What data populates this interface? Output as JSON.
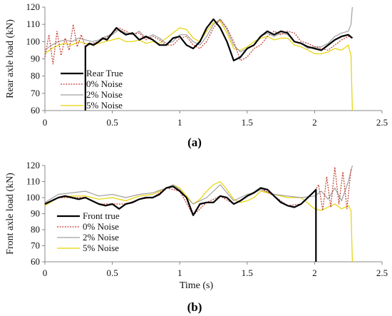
{
  "chart_data": [
    {
      "type": "line",
      "caption": "(a)",
      "xlabel": "",
      "ylabel": "Rear axle load (kN)",
      "xlim": [
        0,
        2.5
      ],
      "ylim": [
        60,
        120
      ],
      "xticks": [
        "0",
        "0.5",
        "1",
        "1.5",
        "2",
        "2.5"
      ],
      "yticks": [
        "60",
        "70",
        "80",
        "90",
        "100",
        "110",
        "120"
      ],
      "grid": false,
      "legend_position": "lower-left",
      "series": [
        {
          "name": "Rear True",
          "color": "#000000",
          "style": "solid",
          "x": [
            0.3,
            0.3,
            0.33,
            0.36,
            0.4,
            0.43,
            0.46,
            0.5,
            0.53,
            0.56,
            0.6,
            0.65,
            0.7,
            0.75,
            0.8,
            0.85,
            0.9,
            0.95,
            1.0,
            1.05,
            1.1,
            1.15,
            1.2,
            1.25,
            1.3,
            1.35,
            1.4,
            1.45,
            1.5,
            1.55,
            1.6,
            1.65,
            1.7,
            1.75,
            1.8,
            1.85,
            1.9,
            1.95,
            2.0,
            2.05,
            2.1,
            2.15,
            2.2,
            2.25,
            2.28
          ],
          "y": [
            60,
            97,
            99,
            98,
            100,
            102,
            101,
            105,
            108,
            106,
            104,
            105,
            101,
            103,
            101,
            98,
            98,
            102,
            103,
            98,
            96,
            100,
            108,
            113,
            108,
            100,
            89,
            91,
            96,
            98,
            103,
            106,
            104,
            106,
            105,
            100,
            99,
            97,
            96,
            95,
            98,
            101,
            103,
            104,
            102
          ]
        },
        {
          "name": "0% Noise",
          "color": "#c0392b",
          "style": "dotted",
          "x": [
            0,
            0.03,
            0.06,
            0.09,
            0.12,
            0.15,
            0.18,
            0.21,
            0.24,
            0.27,
            0.3,
            0.35,
            0.4,
            0.45,
            0.5,
            0.55,
            0.6,
            0.65,
            0.7,
            0.75,
            0.8,
            0.85,
            0.9,
            0.95,
            1.0,
            1.05,
            1.1,
            1.15,
            1.2,
            1.25,
            1.3,
            1.35,
            1.4,
            1.45,
            1.5,
            1.55,
            1.6,
            1.65,
            1.7,
            1.75,
            1.8,
            1.85,
            1.9,
            1.95,
            2.0,
            2.05,
            2.1,
            2.15,
            2.2,
            2.25,
            2.28
          ],
          "y": [
            91,
            104,
            87,
            106,
            92,
            102,
            95,
            110,
            97,
            104,
            97,
            99,
            100,
            102,
            105,
            108,
            106,
            104,
            105,
            101,
            103,
            101,
            98,
            98,
            102,
            103,
            98,
            96,
            100,
            108,
            113,
            108,
            100,
            89,
            91,
            96,
            98,
            103,
            106,
            104,
            106,
            105,
            100,
            99,
            97,
            96,
            95,
            98,
            101,
            103,
            102
          ]
        },
        {
          "name": "2% Noise",
          "color": "#a0a0a0",
          "style": "solid",
          "x": [
            0,
            0.05,
            0.1,
            0.15,
            0.2,
            0.25,
            0.3,
            0.35,
            0.4,
            0.45,
            0.5,
            0.55,
            0.6,
            0.65,
            0.7,
            0.75,
            0.8,
            0.85,
            0.9,
            0.95,
            1.0,
            1.05,
            1.1,
            1.15,
            1.2,
            1.25,
            1.3,
            1.35,
            1.4,
            1.45,
            1.5,
            1.55,
            1.6,
            1.65,
            1.7,
            1.75,
            1.8,
            1.85,
            1.9,
            1.95,
            2.0,
            2.05,
            2.1,
            2.15,
            2.2,
            2.25,
            2.27,
            2.28
          ],
          "y": [
            95,
            98,
            100,
            101,
            100,
            102,
            101,
            100,
            101,
            103,
            104,
            107,
            105,
            104,
            106,
            102,
            104,
            102,
            99,
            100,
            104,
            104,
            100,
            98,
            103,
            110,
            113,
            107,
            98,
            94,
            96,
            98,
            103,
            105,
            103,
            105,
            104,
            100,
            99,
            96,
            97,
            97,
            99,
            103,
            105,
            106,
            110,
            120
          ]
        },
        {
          "name": "5% Noise",
          "color": "#e6d200",
          "style": "solid",
          "x": [
            0,
            0.05,
            0.1,
            0.15,
            0.2,
            0.25,
            0.3,
            0.35,
            0.4,
            0.45,
            0.5,
            0.55,
            0.6,
            0.65,
            0.7,
            0.75,
            0.8,
            0.85,
            0.9,
            0.95,
            1.0,
            1.05,
            1.1,
            1.15,
            1.2,
            1.25,
            1.3,
            1.35,
            1.4,
            1.45,
            1.5,
            1.55,
            1.6,
            1.65,
            1.7,
            1.75,
            1.8,
            1.85,
            1.9,
            1.95,
            2.0,
            2.05,
            2.1,
            2.15,
            2.2,
            2.25,
            2.27,
            2.28
          ],
          "y": [
            93,
            96,
            98,
            99,
            98,
            100,
            99,
            98,
            99,
            100,
            101,
            102,
            100,
            100,
            101,
            99,
            100,
            99,
            102,
            105,
            108,
            107,
            102,
            100,
            106,
            111,
            112,
            105,
            96,
            95,
            97,
            100,
            102,
            103,
            101,
            102,
            102,
            98,
            97,
            95,
            93,
            93,
            94,
            96,
            95,
            98,
            92,
            60
          ]
        }
      ]
    },
    {
      "type": "line",
      "caption": "(b)",
      "xlabel": "Time (s)",
      "ylabel": "Front axle load (kN)",
      "xlim": [
        0,
        2.5
      ],
      "ylim": [
        60,
        120
      ],
      "xticks": [
        "0",
        "0.5",
        "1",
        "1.5",
        "2",
        "2.5"
      ],
      "yticks": [
        "60",
        "70",
        "80",
        "90",
        "100",
        "110",
        "120"
      ],
      "grid": false,
      "legend_position": "lower-left",
      "series": [
        {
          "name": "Front true",
          "color": "#000000",
          "style": "solid",
          "x": [
            0,
            0.05,
            0.1,
            0.15,
            0.2,
            0.25,
            0.3,
            0.35,
            0.4,
            0.45,
            0.5,
            0.55,
            0.6,
            0.65,
            0.7,
            0.75,
            0.8,
            0.85,
            0.9,
            0.95,
            1.0,
            1.05,
            1.1,
            1.15,
            1.2,
            1.25,
            1.3,
            1.35,
            1.4,
            1.45,
            1.5,
            1.55,
            1.6,
            1.65,
            1.7,
            1.75,
            1.8,
            1.85,
            1.9,
            1.95,
            2.0,
            2.01,
            2.01
          ],
          "y": [
            96,
            98,
            100,
            101,
            100,
            99,
            100,
            98,
            96,
            95,
            96,
            93,
            96,
            97,
            99,
            100,
            100,
            102,
            106,
            107,
            104,
            100,
            89,
            96,
            97,
            97,
            101,
            100,
            96,
            98,
            101,
            103,
            106,
            105,
            101,
            97,
            95,
            94,
            96,
            100,
            104,
            105,
            60
          ]
        },
        {
          "name": "0% Noise",
          "color": "#c0392b",
          "style": "dotted",
          "x": [
            0,
            0.1,
            0.2,
            0.3,
            0.4,
            0.5,
            0.6,
            0.7,
            0.8,
            0.9,
            1.0,
            1.1,
            1.2,
            1.3,
            1.4,
            1.5,
            1.6,
            1.7,
            1.8,
            1.9,
            2.0,
            2.03,
            2.06,
            2.09,
            2.12,
            2.15,
            2.18,
            2.21,
            2.24,
            2.27
          ],
          "y": [
            96,
            100,
            100,
            100,
            96,
            96,
            96,
            99,
            100,
            106,
            104,
            89,
            97,
            101,
            96,
            101,
            106,
            101,
            95,
            96,
            104,
            108,
            92,
            113,
            94,
            119,
            96,
            116,
            93,
            118
          ]
        },
        {
          "name": "2% Noise",
          "color": "#a0a0a0",
          "style": "solid",
          "x": [
            0,
            0.1,
            0.2,
            0.3,
            0.4,
            0.5,
            0.6,
            0.7,
            0.8,
            0.9,
            0.95,
            1.0,
            1.05,
            1.1,
            1.15,
            1.2,
            1.25,
            1.3,
            1.35,
            1.4,
            1.45,
            1.5,
            1.55,
            1.6,
            1.7,
            1.8,
            1.9,
            2.0,
            2.05,
            2.1,
            2.15,
            2.2,
            2.25,
            2.28
          ],
          "y": [
            97,
            102,
            103,
            104,
            101,
            102,
            100,
            102,
            103,
            106,
            108,
            105,
            100,
            96,
            98,
            100,
            104,
            108,
            103,
            98,
            100,
            102,
            103,
            105,
            102,
            101,
            100,
            101,
            104,
            99,
            106,
            98,
            110,
            120
          ]
        },
        {
          "name": "5% Noise",
          "color": "#e6d200",
          "style": "solid",
          "x": [
            0,
            0.1,
            0.2,
            0.3,
            0.4,
            0.5,
            0.6,
            0.7,
            0.8,
            0.9,
            0.95,
            1.0,
            1.05,
            1.1,
            1.15,
            1.2,
            1.25,
            1.3,
            1.35,
            1.4,
            1.45,
            1.5,
            1.55,
            1.6,
            1.7,
            1.8,
            1.9,
            2.0,
            2.05,
            2.1,
            2.15,
            2.2,
            2.25,
            2.27,
            2.28
          ],
          "y": [
            95,
            100,
            101,
            101,
            99,
            100,
            98,
            101,
            102,
            106,
            108,
            106,
            101,
            96,
            99,
            104,
            108,
            110,
            105,
            99,
            97,
            98,
            100,
            104,
            102,
            100,
            100,
            93,
            92,
            94,
            96,
            93,
            95,
            92,
            60
          ]
        }
      ]
    }
  ]
}
